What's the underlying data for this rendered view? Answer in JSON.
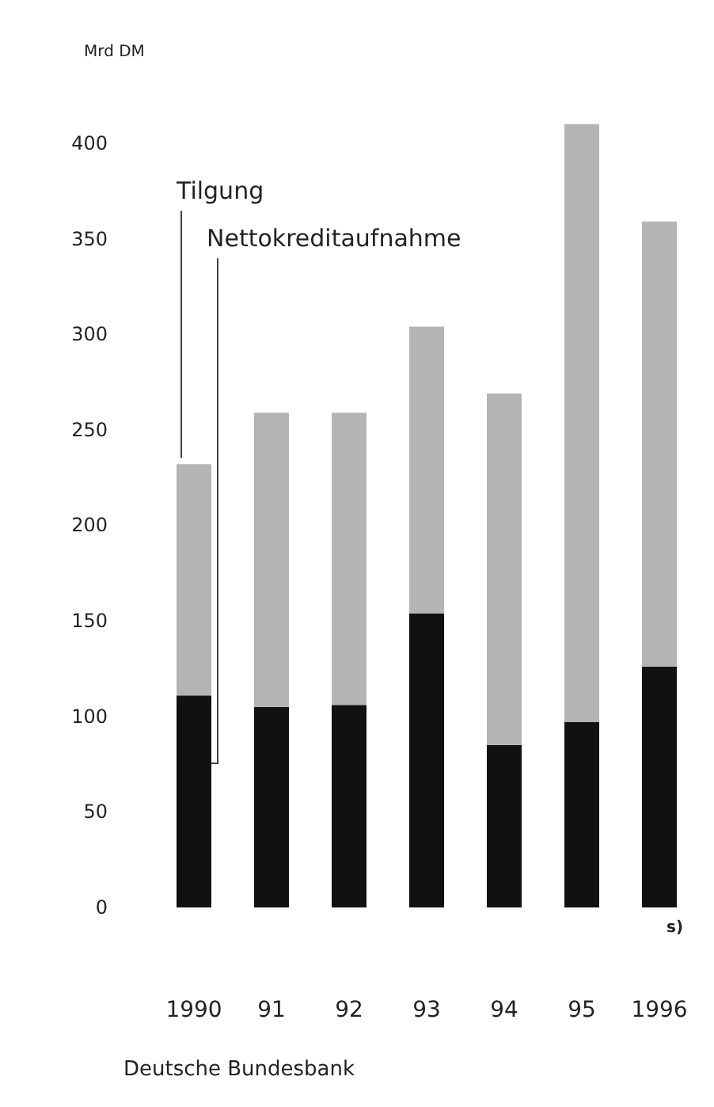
{
  "chart_data": {
    "type": "bar",
    "stacked": true,
    "ylabel": "Mrd DM",
    "categories": [
      "1990",
      "91",
      "92",
      "93",
      "94",
      "95",
      "1996"
    ],
    "series": [
      {
        "name": "Nettokreditaufnahme",
        "color": "#111111",
        "values": [
          111,
          105,
          106,
          154,
          85,
          97,
          126
        ]
      },
      {
        "name": "Tilgung",
        "color": "#b4b4b4",
        "values": [
          121,
          154,
          153,
          150,
          184,
          313,
          233
        ]
      }
    ],
    "ylim": [
      0,
      412
    ],
    "yticks": [
      0,
      50,
      100,
      150,
      200,
      250,
      300,
      350,
      400
    ],
    "grid": false,
    "legend": false,
    "annotations": [
      "s)",
      "Deutsche Bundesbank"
    ]
  }
}
